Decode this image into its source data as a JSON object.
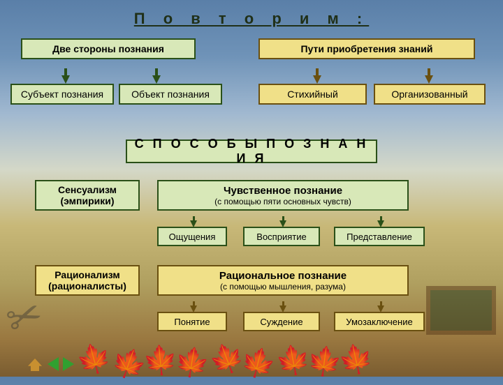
{
  "title": "П о в т о р и м :",
  "top": {
    "two_sides": "Две стороны познания",
    "paths": "Пути приобретения знаний",
    "subject": "Субъект познания",
    "object": "Объект познания",
    "spontaneous": "Стихийный",
    "organized": "Организованный"
  },
  "methods_label": "С П О С О Б Ы   П О З Н А Н И Я",
  "sensual": {
    "school": "Сенсуализм (эмпирики)",
    "title": "Чувственное познание",
    "sub": "(с помощью пяти основных чувств)",
    "items": [
      "Ощущения",
      "Восприятие",
      "Представление"
    ]
  },
  "rational": {
    "school": "Рационализм (рационалисты)",
    "title": "Рациональное познание",
    "sub": "(с помощью мышления, разума)",
    "items": [
      "Понятие",
      "Суждение",
      "Умозаключение"
    ]
  },
  "colors": {
    "green_fill": "#d8e8b8",
    "green_border": "#2a5018",
    "yellow_fill": "#f0e088",
    "yellow_border": "#6a5010"
  }
}
